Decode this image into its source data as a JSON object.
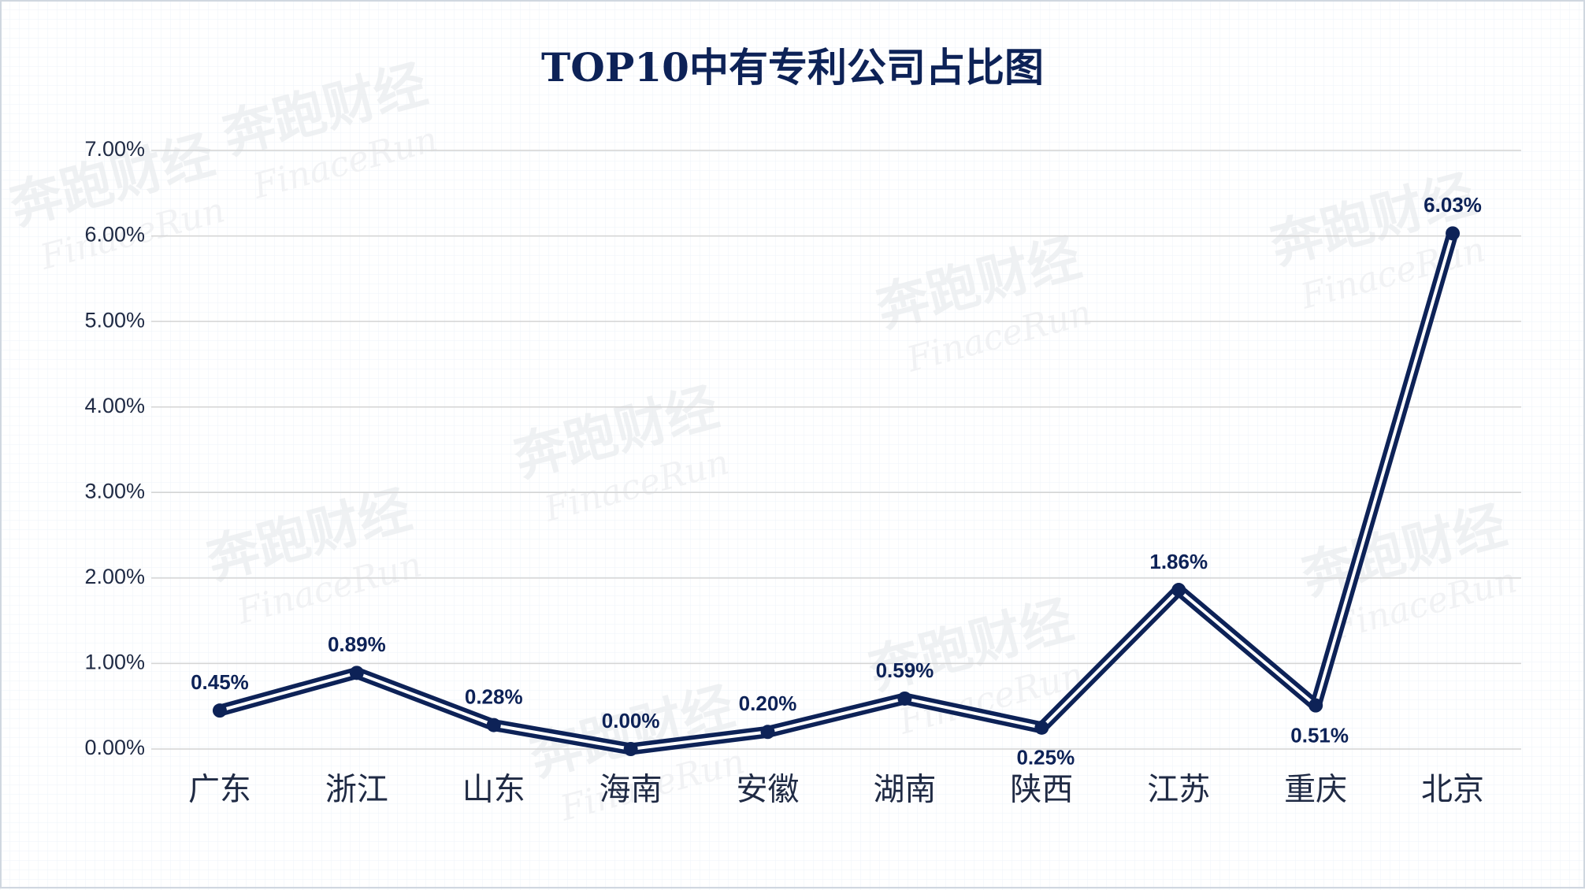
{
  "chart_data": {
    "type": "line",
    "title": "TOP10中有专利公司占比图",
    "categories": [
      "广东",
      "浙江",
      "山东",
      "海南",
      "安徽",
      "湖南",
      "陕西",
      "江苏",
      "重庆",
      "北京"
    ],
    "series": [
      {
        "name": "占比",
        "color": "#0d2257",
        "values": [
          0.45,
          0.89,
          0.28,
          0.0,
          0.2,
          0.59,
          0.25,
          1.86,
          0.51,
          6.03
        ],
        "value_labels": [
          "0.45%",
          "0.89%",
          "0.28%",
          "0.00%",
          "0.20%",
          "0.59%",
          "0.25%",
          "1.86%",
          "0.51%",
          "6.03%"
        ]
      }
    ],
    "ylim": [
      0,
      7
    ],
    "yticks": [
      {
        "value": 0,
        "label": "0.00%"
      },
      {
        "value": 1,
        "label": "1.00%"
      },
      {
        "value": 2,
        "label": "2.00%"
      },
      {
        "value": 3,
        "label": "3.00%"
      },
      {
        "value": 4,
        "label": "4.00%"
      },
      {
        "value": 5,
        "label": "5.00%"
      },
      {
        "value": 6,
        "label": "6.00%"
      },
      {
        "value": 7,
        "label": "7.00%"
      }
    ],
    "grid": true,
    "watermark": {
      "name": "奔跑财经",
      "latin": "FinaceRun"
    }
  }
}
